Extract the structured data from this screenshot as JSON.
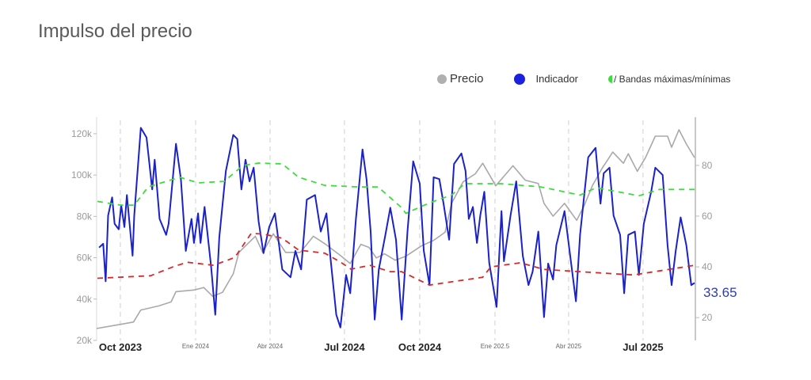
{
  "header": {
    "title": "Impulso del precio"
  },
  "legend": {
    "price": "Precio",
    "indicator": "Indicador",
    "bands": "/ Bandas máximas/mínimas"
  },
  "colors": {
    "price": "#a9a9a9",
    "indicator": "#1a22c8",
    "upper_band": "#3ddc3d",
    "lower_band": "#d62a2a",
    "last_value": "#2f3cb8"
  },
  "chart_data": {
    "type": "line",
    "title": "Impulso del precio",
    "xlim": [
      "2023-09-02",
      "2025-09-03"
    ],
    "y_left": {
      "ticks": [
        "120k",
        "100k",
        "80k",
        "60k",
        "40k",
        "20k"
      ],
      "tick_values": [
        120,
        100,
        80,
        60,
        40,
        20
      ],
      "ylim": [
        20,
        128
      ],
      "unit": "k"
    },
    "y_right": {
      "ticks": [
        "80",
        "60",
        "40",
        "20"
      ],
      "tick_values": [
        80,
        60,
        40,
        20
      ],
      "ylim": [
        11,
        99
      ]
    },
    "x_ticks": [
      {
        "label": "Oct 2023",
        "date": "2023-10-01",
        "major": true
      },
      {
        "label": "Ene 2024",
        "date": "2024-01-01",
        "major": false
      },
      {
        "label": "Abr 2024",
        "date": "2024-04-01",
        "major": false
      },
      {
        "label": "Jul 2024",
        "date": "2024-07-01",
        "major": true
      },
      {
        "label": "Oct 2024",
        "date": "2024-10-01",
        "major": true
      },
      {
        "label": "Ene 202.5",
        "date": "2025-01-01",
        "major": false
      },
      {
        "label": "Abr 2025",
        "date": "2025-04-01",
        "major": false
      },
      {
        "label": "Jul 2025",
        "date": "2025-07-01",
        "major": true
      }
    ],
    "grid": "vertical dashed at x ticks",
    "legend_position": "top-right",
    "last_value_label": "33.65",
    "series": [
      {
        "name": "Precio",
        "axis": "left",
        "points": [
          [
            "2023-09-02",
            25.8
          ],
          [
            "2023-10-02",
            27.8
          ],
          [
            "2023-10-17",
            28.9
          ],
          [
            "2023-10-26",
            34.7
          ],
          [
            "2023-11-17",
            36.7
          ],
          [
            "2023-12-02",
            38.6
          ],
          [
            "2023-12-08",
            43.6
          ],
          [
            "2023-12-30",
            44.4
          ],
          [
            "2024-01-11",
            45.6
          ],
          [
            "2024-01-22",
            41.3
          ],
          [
            "2024-02-03",
            43.3
          ],
          [
            "2024-02-16",
            52.2
          ],
          [
            "2024-02-23",
            62.6
          ],
          [
            "2024-03-10",
            68.8
          ],
          [
            "2024-03-14",
            70.4
          ],
          [
            "2024-03-23",
            62.6
          ],
          [
            "2024-04-05",
            71.6
          ],
          [
            "2024-04-20",
            62.6
          ],
          [
            "2024-05-08",
            62.6
          ],
          [
            "2024-05-24",
            70.4
          ],
          [
            "2024-06-08",
            66.5
          ],
          [
            "2024-06-26",
            61.1
          ],
          [
            "2024-07-08",
            57.2
          ],
          [
            "2024-07-21",
            66.5
          ],
          [
            "2024-07-31",
            65.0
          ],
          [
            "2024-08-09",
            59.9
          ],
          [
            "2024-08-19",
            61.9
          ],
          [
            "2024-09-01",
            58.8
          ],
          [
            "2024-09-14",
            60.7
          ],
          [
            "2024-10-03",
            65.7
          ],
          [
            "2024-10-18",
            68.4
          ],
          [
            "2024-11-01",
            72.3
          ],
          [
            "2024-11-09",
            86.3
          ],
          [
            "2024-11-23",
            96.7
          ],
          [
            "2024-12-08",
            100.6
          ],
          [
            "2024-12-17",
            105.7
          ],
          [
            "2025-01-02",
            94.8
          ],
          [
            "2025-01-23",
            104.5
          ],
          [
            "2025-02-07",
            97.5
          ],
          [
            "2025-02-23",
            95.9
          ],
          [
            "2025-03-02",
            86.3
          ],
          [
            "2025-03-13",
            80.1
          ],
          [
            "2025-03-27",
            86.3
          ],
          [
            "2025-04-11",
            78.1
          ],
          [
            "2025-04-20",
            85.1
          ],
          [
            "2025-04-30",
            94.8
          ],
          [
            "2025-05-12",
            103.3
          ],
          [
            "2025-05-25",
            111.1
          ],
          [
            "2025-06-07",
            105.7
          ],
          [
            "2025-06-13",
            110.3
          ],
          [
            "2025-06-24",
            101.8
          ],
          [
            "2025-07-04",
            108.4
          ],
          [
            "2025-07-16",
            118.8
          ],
          [
            "2025-07-31",
            118.8
          ],
          [
            "2025-08-05",
            113.4
          ],
          [
            "2025-08-14",
            121.9
          ],
          [
            "2025-08-23",
            115.0
          ],
          [
            "2025-09-02",
            108.4
          ]
        ]
      },
      {
        "name": "Indicador",
        "axis": "right",
        "points": [
          [
            "2023-09-05",
            47.6
          ],
          [
            "2023-09-10",
            49.1
          ],
          [
            "2023-09-13",
            34.3
          ],
          [
            "2023-09-16",
            60.2
          ],
          [
            "2023-09-21",
            67.4
          ],
          [
            "2023-09-24",
            57.0
          ],
          [
            "2023-09-29",
            54.8
          ],
          [
            "2023-10-02",
            64.3
          ],
          [
            "2023-10-06",
            55.7
          ],
          [
            "2023-10-09",
            68.3
          ],
          [
            "2023-10-16",
            44.4
          ],
          [
            "2023-10-18",
            60.2
          ],
          [
            "2023-10-26",
            94.8
          ],
          [
            "2023-11-02",
            91.0
          ],
          [
            "2023-11-09",
            70.5
          ],
          [
            "2023-11-12",
            82.2
          ],
          [
            "2023-11-18",
            58.9
          ],
          [
            "2023-11-26",
            52.6
          ],
          [
            "2023-11-29",
            57.0
          ],
          [
            "2023-12-08",
            88.5
          ],
          [
            "2023-12-14",
            74.6
          ],
          [
            "2023-12-20",
            46.3
          ],
          [
            "2023-12-27",
            58.9
          ],
          [
            "2023-12-30",
            49.4
          ],
          [
            "2024-01-04",
            61.1
          ],
          [
            "2024-01-07",
            49.4
          ],
          [
            "2024-01-12",
            63.6
          ],
          [
            "2024-01-20",
            40.0
          ],
          [
            "2024-01-25",
            21.1
          ],
          [
            "2024-01-30",
            51.7
          ],
          [
            "2024-02-07",
            77.8
          ],
          [
            "2024-02-16",
            92.0
          ],
          [
            "2024-02-21",
            90.4
          ],
          [
            "2024-02-26",
            70.5
          ],
          [
            "2024-03-02",
            82.2
          ],
          [
            "2024-03-07",
            73.7
          ],
          [
            "2024-03-12",
            79.1
          ],
          [
            "2024-03-18",
            58.0
          ],
          [
            "2024-03-24",
            45.4
          ],
          [
            "2024-03-31",
            55.7
          ],
          [
            "2024-04-07",
            61.1
          ],
          [
            "2024-04-16",
            39.0
          ],
          [
            "2024-04-26",
            35.9
          ],
          [
            "2024-05-02",
            46.3
          ],
          [
            "2024-05-09",
            39.0
          ],
          [
            "2024-05-16",
            66.5
          ],
          [
            "2024-05-26",
            68.3
          ],
          [
            "2024-06-02",
            53.9
          ],
          [
            "2024-06-09",
            61.1
          ],
          [
            "2024-06-14",
            43.1
          ],
          [
            "2024-06-21",
            21.1
          ],
          [
            "2024-06-26",
            16.1
          ],
          [
            "2024-07-03",
            36.8
          ],
          [
            "2024-07-08",
            29.6
          ],
          [
            "2024-07-15",
            58.9
          ],
          [
            "2024-07-23",
            86.3
          ],
          [
            "2024-07-28",
            74.6
          ],
          [
            "2024-08-02",
            53.9
          ],
          [
            "2024-08-07",
            19.2
          ],
          [
            "2024-08-12",
            39.0
          ],
          [
            "2024-08-20",
            52.6
          ],
          [
            "2024-08-26",
            63.3
          ],
          [
            "2024-09-02",
            50.7
          ],
          [
            "2024-09-09",
            19.2
          ],
          [
            "2024-09-16",
            53.9
          ],
          [
            "2024-09-23",
            81.6
          ],
          [
            "2024-10-01",
            72.8
          ],
          [
            "2024-10-06",
            46.3
          ],
          [
            "2024-10-13",
            32.8
          ],
          [
            "2024-10-18",
            75.3
          ],
          [
            "2024-10-25",
            74.6
          ],
          [
            "2024-10-30",
            65.2
          ],
          [
            "2024-11-06",
            50.7
          ],
          [
            "2024-11-12",
            80.6
          ],
          [
            "2024-11-21",
            84.7
          ],
          [
            "2024-11-26",
            77.8
          ],
          [
            "2024-11-30",
            58.9
          ],
          [
            "2024-12-05",
            63.6
          ],
          [
            "2024-12-10",
            49.4
          ],
          [
            "2024-12-14",
            60.2
          ],
          [
            "2024-12-19",
            69.6
          ],
          [
            "2024-12-25",
            41.6
          ],
          [
            "2025-01-03",
            24.2
          ],
          [
            "2025-01-09",
            62.0
          ],
          [
            "2025-01-12",
            42.2
          ],
          [
            "2025-01-20",
            60.2
          ],
          [
            "2025-01-27",
            73.7
          ],
          [
            "2025-02-04",
            44.4
          ],
          [
            "2025-02-11",
            32.8
          ],
          [
            "2025-02-16",
            38.1
          ],
          [
            "2025-02-23",
            53.9
          ],
          [
            "2025-03-02",
            20.2
          ],
          [
            "2025-03-07",
            41.3
          ],
          [
            "2025-03-13",
            35.0
          ],
          [
            "2025-03-17",
            48.5
          ],
          [
            "2025-03-27",
            62.0
          ],
          [
            "2025-04-01",
            49.4
          ],
          [
            "2025-04-10",
            26.4
          ],
          [
            "2025-04-15",
            52.6
          ],
          [
            "2025-04-25",
            83.2
          ],
          [
            "2025-05-04",
            86.9
          ],
          [
            "2025-05-10",
            64.9
          ],
          [
            "2025-05-14",
            76.9
          ],
          [
            "2025-05-21",
            79.1
          ],
          [
            "2025-05-26",
            60.2
          ],
          [
            "2025-06-03",
            52.6
          ],
          [
            "2025-06-08",
            29.6
          ],
          [
            "2025-06-13",
            52.6
          ],
          [
            "2025-06-21",
            53.9
          ],
          [
            "2025-06-26",
            36.8
          ],
          [
            "2025-07-02",
            57.0
          ],
          [
            "2025-07-11",
            69.6
          ],
          [
            "2025-07-16",
            79.1
          ],
          [
            "2025-07-25",
            76.2
          ],
          [
            "2025-07-31",
            48.5
          ],
          [
            "2025-08-05",
            32.8
          ],
          [
            "2025-08-10",
            46.3
          ],
          [
            "2025-08-16",
            59.5
          ],
          [
            "2025-08-23",
            48.5
          ],
          [
            "2025-08-29",
            32.8
          ],
          [
            "2025-09-02",
            33.65
          ]
        ]
      },
      {
        "name": "Banda máxima",
        "axis": "right",
        "style": "dashed",
        "points": [
          [
            "2023-09-03",
            65.8
          ],
          [
            "2023-10-02",
            64.3
          ],
          [
            "2023-10-18",
            64.3
          ],
          [
            "2023-11-04",
            71.5
          ],
          [
            "2023-11-26",
            73.7
          ],
          [
            "2023-12-13",
            75.3
          ],
          [
            "2024-01-04",
            73.1
          ],
          [
            "2024-02-05",
            73.7
          ],
          [
            "2024-02-28",
            80.0
          ],
          [
            "2024-03-18",
            80.9
          ],
          [
            "2024-04-16",
            80.6
          ],
          [
            "2024-05-06",
            75.3
          ],
          [
            "2024-06-07",
            72.1
          ],
          [
            "2024-07-18",
            71.5
          ],
          [
            "2024-08-11",
            71.5
          ],
          [
            "2024-09-09",
            63.3
          ],
          [
            "2024-09-14",
            61.1
          ],
          [
            "2024-10-13",
            65.2
          ],
          [
            "2024-11-09",
            68.3
          ],
          [
            "2024-11-25",
            72.8
          ],
          [
            "2025-01-09",
            72.8
          ],
          [
            "2025-02-26",
            71.5
          ],
          [
            "2025-04-15",
            68.3
          ],
          [
            "2025-05-05",
            71.2
          ],
          [
            "2025-06-26",
            68.0
          ],
          [
            "2025-07-21",
            70.5
          ],
          [
            "2025-09-02",
            70.5
          ]
        ]
      },
      {
        "name": "Banda mínima",
        "axis": "right",
        "style": "dashed",
        "points": [
          [
            "2023-09-03",
            35.5
          ],
          [
            "2023-11-07",
            36.5
          ],
          [
            "2023-12-06",
            40.2
          ],
          [
            "2023-12-22",
            41.8
          ],
          [
            "2024-01-23",
            40.6
          ],
          [
            "2024-02-18",
            43.7
          ],
          [
            "2024-03-09",
            53.2
          ],
          [
            "2024-03-24",
            52.9
          ],
          [
            "2024-04-16",
            51.3
          ],
          [
            "2024-05-06",
            46.6
          ],
          [
            "2024-06-07",
            45.4
          ],
          [
            "2024-06-26",
            41.9
          ],
          [
            "2024-07-09",
            39.1
          ],
          [
            "2024-08-01",
            40.6
          ],
          [
            "2024-08-26",
            38.1
          ],
          [
            "2024-09-09",
            38.1
          ],
          [
            "2024-10-13",
            32.8
          ],
          [
            "2024-12-17",
            35.9
          ],
          [
            "2024-12-27",
            40.0
          ],
          [
            "2025-02-01",
            41.6
          ],
          [
            "2025-03-02",
            39.0
          ],
          [
            "2025-04-15",
            38.1
          ],
          [
            "2025-06-19",
            36.8
          ],
          [
            "2025-07-21",
            38.4
          ],
          [
            "2025-09-02",
            40.6
          ]
        ]
      }
    ]
  }
}
